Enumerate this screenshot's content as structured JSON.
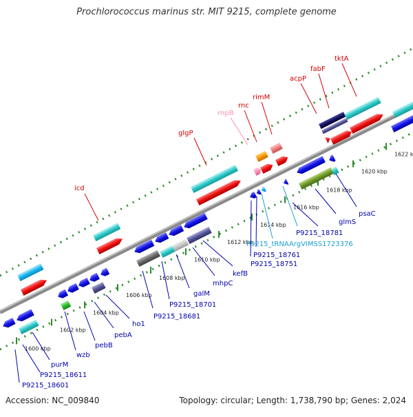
{
  "title": "Prochlorococcus marinus str. MIT 9215, complete genome",
  "footer": {
    "accession": "Accession: NC_009840",
    "summary": "Topology: circular; Length: 1,738,790 bp; Genes: 2,024"
  },
  "ruler": {
    "ticks": [
      {
        "label": "1600 kbp",
        "t": 0.04
      },
      {
        "label": "1602 kbp",
        "t": 0.125
      },
      {
        "label": "1604 kbp",
        "t": 0.205
      },
      {
        "label": "1606 kbp",
        "t": 0.285
      },
      {
        "label": "1608 kbp",
        "t": 0.365
      },
      {
        "label": "1610 kbp",
        "t": 0.45
      },
      {
        "label": "1612 kbp",
        "t": 0.53
      },
      {
        "label": "1614 kbp",
        "t": 0.61
      },
      {
        "label": "1616 kbp",
        "t": 0.69
      },
      {
        "label": "1618 kbp",
        "t": 0.77
      },
      {
        "label": "1620 kbp",
        "t": 0.855
      },
      {
        "label": "1622 kbp",
        "t": 0.935
      }
    ]
  },
  "genes_top": [
    {
      "name": "icd"
    },
    {
      "name": "glgP"
    },
    {
      "name": "rnpB"
    },
    {
      "name": "rnc"
    },
    {
      "name": "rimM"
    },
    {
      "name": "acpP"
    },
    {
      "name": "fabF"
    },
    {
      "name": "tktA"
    }
  ],
  "genes_bottom": [
    {
      "name": "P9215_18601"
    },
    {
      "name": "P9215_18611"
    },
    {
      "name": "purM"
    },
    {
      "name": "wzb"
    },
    {
      "name": "pebB"
    },
    {
      "name": "pebA"
    },
    {
      "name": "ho1"
    },
    {
      "name": "P9215_18681"
    },
    {
      "name": "P9215_18701"
    },
    {
      "name": "galM"
    },
    {
      "name": "mhpC"
    },
    {
      "name": "kefB"
    },
    {
      "name": "P9215_18751"
    },
    {
      "name": "P9215_18761"
    },
    {
      "name": "P9215_tRNAArgVIMSS1723376"
    },
    {
      "name": "P9215_18781"
    },
    {
      "name": "glmS"
    },
    {
      "name": "psaC"
    }
  ],
  "colors": {
    "backbone": "#8a8a8a",
    "tick": "#2a8a2a",
    "top_label": "#d40000",
    "rna_label": "#ff8fb0",
    "bottom_label": "#0000aa",
    "trna_label": "#1a9fd6"
  }
}
